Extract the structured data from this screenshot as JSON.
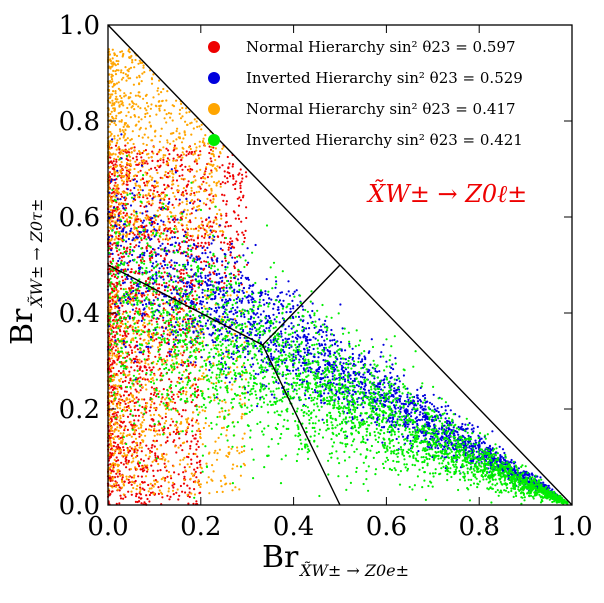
{
  "chart_data": {
    "type": "scatter",
    "title": "",
    "xlabel": "Br",
    "xlabel_subscript": "X̃W± → Z0e±",
    "ylabel": "Br",
    "ylabel_subscript": "X̃W± → Z0τ±",
    "xlim": [
      0.0,
      1.0
    ],
    "ylim": [
      0.0,
      1.0
    ],
    "xticks": [
      "0.0",
      "0.2",
      "0.4",
      "0.6",
      "0.8",
      "1.0"
    ],
    "yticks": [
      "0.0",
      "0.2",
      "0.4",
      "0.6",
      "0.8",
      "1.0"
    ],
    "grid": false,
    "legend_position": "top-right",
    "annotation": "X̃W± → Z0ℓ±",
    "series": [
      {
        "name": "Normal Hierarchy sin² θ23 = 0.597",
        "color": "#ee0000",
        "regions": [
          {
            "x_range": [
              0.0,
              0.3
            ],
            "y_lo": 0.45,
            "y_hi": 0.75
          },
          {
            "x_range": [
              0.0,
              0.2
            ],
            "y_lo": 0.0,
            "y_hi": 0.45
          }
        ]
      },
      {
        "name": "Inverted Hierarchy sin² θ23 = 0.529",
        "color": "#0000dd",
        "regions": [
          {
            "x_range": [
              0.0,
              0.95
            ],
            "band_center": [
              0.55,
              0.0
            ],
            "band_width": 0.2
          }
        ]
      },
      {
        "name": "Normal Hierarchy sin² θ23 = 0.417",
        "color": "#ffa500",
        "regions": [
          {
            "x_range": [
              0.0,
              0.25
            ],
            "y_lo": 0.55,
            "y_hi": 0.95
          },
          {
            "x_range": [
              0.0,
              0.3
            ],
            "y_lo": 0.0,
            "y_hi": 0.45
          }
        ]
      },
      {
        "name": "Inverted Hierarchy sin² θ23 = 0.421",
        "color": "#00ee00",
        "regions": [
          {
            "x_range": [
              0.0,
              0.98
            ],
            "band_center": [
              0.45,
              0.0
            ],
            "band_width": 0.3
          }
        ]
      }
    ],
    "reference_lines": [
      {
        "from": [
          0.0,
          1.0
        ],
        "to": [
          1.0,
          0.0
        ]
      },
      {
        "from": [
          0.0,
          0.5
        ],
        "to": [
          0.3333,
          0.3333
        ]
      },
      {
        "from": [
          0.5,
          0.0
        ],
        "to": [
          0.3333,
          0.3333
        ]
      },
      {
        "from": [
          0.5,
          0.5
        ],
        "to": [
          0.3333,
          0.3333
        ]
      }
    ]
  }
}
